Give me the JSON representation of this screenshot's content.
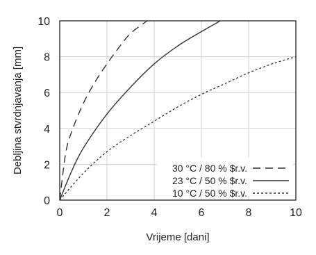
{
  "chart_data": {
    "type": "line",
    "xlabel": "Vrijeme [dani]",
    "ylabel": "Debljina stvrdnjavanja [mm]",
    "xlim": [
      0,
      10
    ],
    "ylim": [
      0,
      10
    ],
    "x_ticks": [
      "0",
      "2",
      "4",
      "6",
      "8",
      "10"
    ],
    "y_ticks": [
      "0",
      "2",
      "4",
      "6",
      "8",
      "10"
    ],
    "grid": true,
    "legend_position": "bottom-right",
    "series": [
      {
        "name": "30 °C / 80 % $r.v.",
        "style": "dashed",
        "color": "#333333",
        "x": [
          0,
          0.25,
          0.5,
          1.0,
          1.5,
          2.0,
          2.5,
          3.0,
          3.7
        ],
        "y": [
          0,
          2.6,
          3.8,
          5.4,
          6.6,
          7.6,
          8.5,
          9.3,
          10.0
        ]
      },
      {
        "name": "23 °C / 50 % $r.v.",
        "style": "solid",
        "color": "#333333",
        "x": [
          0,
          0.5,
          1.0,
          2.0,
          3.0,
          4.0,
          5.0,
          6.0,
          6.8
        ],
        "y": [
          0,
          1.6,
          2.9,
          4.8,
          6.3,
          7.6,
          8.6,
          9.4,
          10.0
        ]
      },
      {
        "name": "10 °C / 50 % $r.v.",
        "style": "dotted",
        "color": "#333333",
        "x": [
          0,
          1,
          2,
          3,
          4,
          5,
          6,
          7,
          8,
          9,
          10
        ],
        "y": [
          0,
          1.5,
          2.7,
          3.6,
          4.4,
          5.2,
          5.9,
          6.5,
          7.1,
          7.6,
          8.0
        ]
      }
    ]
  }
}
